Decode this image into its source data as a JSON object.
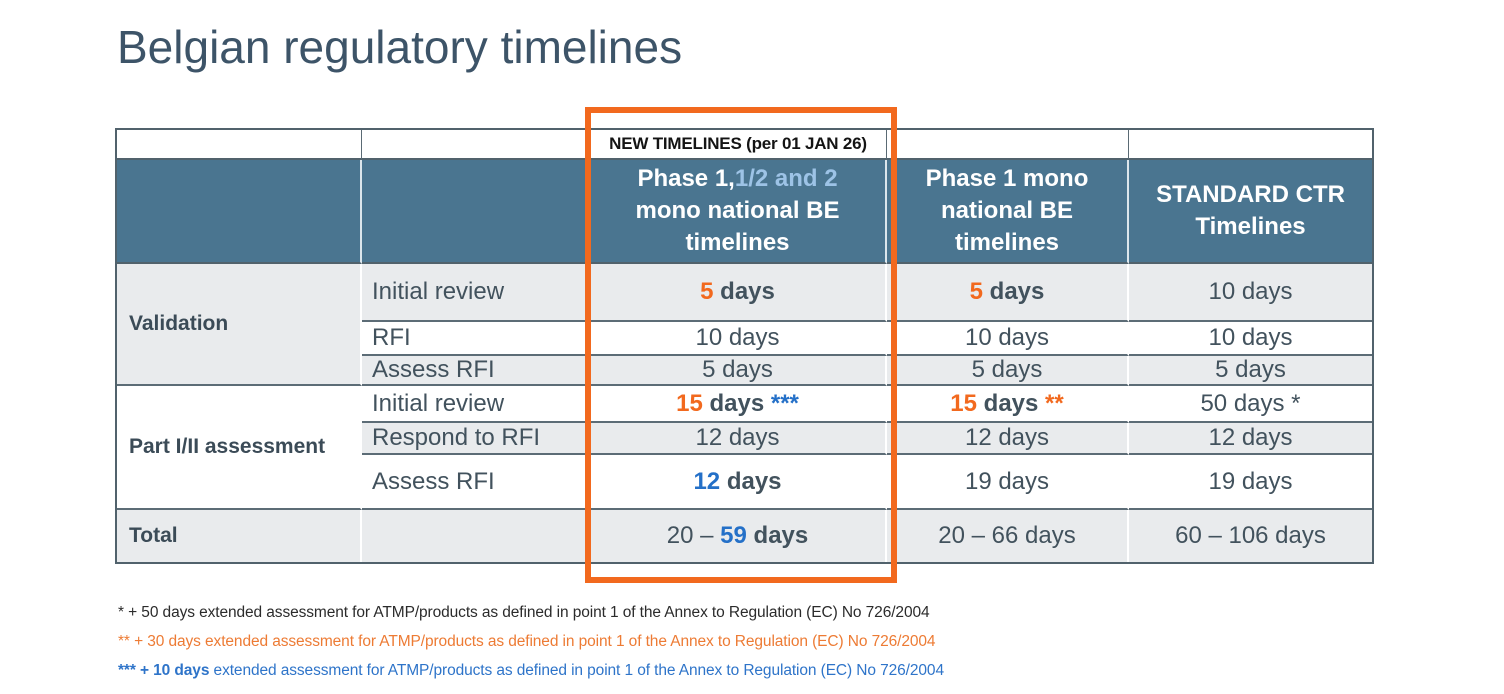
{
  "title": "Belgian regulatory timelines",
  "colors": {
    "header_teal": "#4a7590",
    "row_light": "#e9ebed",
    "accent_orange": "#f2691e",
    "accent_blue": "#2470c8",
    "header_light_blue": "#9dc3e6",
    "text_dark": "#42525d"
  },
  "table": {
    "banner_label": "NEW TIMELINES (per 01 JAN 26)",
    "headers": {
      "phase12": {
        "white1": "Phase 1,",
        "lightblue": "1/2 and 2",
        "white2": "mono national BE timelines"
      },
      "phase1": "Phase 1 mono national BE timelines",
      "standard": "STANDARD CTR Timelines"
    },
    "groups": [
      {
        "label": "Validation",
        "rows": [
          {
            "step": "Initial review",
            "new": {
              "num": "5",
              "unit": " days"
            },
            "mono": {
              "num": "5",
              "unit": " days"
            },
            "std": "10 days"
          },
          {
            "step": "RFI",
            "new": "10 days",
            "mono": "10 days",
            "std": "10 days"
          },
          {
            "step": "Assess RFI",
            "new": "5 days",
            "mono": "5 days",
            "std": "5 days"
          }
        ]
      },
      {
        "label": "Part I/II assessment",
        "rows": [
          {
            "step": "Initial review",
            "new": {
              "num": "15",
              "unit": " days ",
              "note": "***"
            },
            "mono": {
              "num": "15",
              "unit": " days ",
              "note": "**"
            },
            "std": "50 days *"
          },
          {
            "step": "Respond to RFI",
            "new": "12 days",
            "mono": "12 days",
            "std": "12 days"
          },
          {
            "step": "Assess RFI",
            "new": {
              "num": "12",
              "unit": " days"
            },
            "mono": "19 days",
            "std": "19 days"
          }
        ]
      }
    ],
    "total": {
      "label": "Total",
      "new": {
        "pre": "20 – ",
        "num": "59",
        "unit": " days"
      },
      "mono": "20 – 66 days",
      "std": "60 – 106 days"
    }
  },
  "footnotes": [
    {
      "prefix": "",
      "text": "* + 50 days extended assessment for ATMP/products as defined in point 1 of the Annex to Regulation (EC) No 726/2004"
    },
    {
      "prefix": "",
      "text": "** + 30 days extended assessment for ATMP/products as defined in point 1 of the Annex to Regulation (EC) No 726/2004"
    },
    {
      "prefix": "*** + 10 days",
      "text": " extended assessment for ATMP/products as defined in point 1 of the Annex to Regulation (EC) No 726/2004"
    }
  ]
}
